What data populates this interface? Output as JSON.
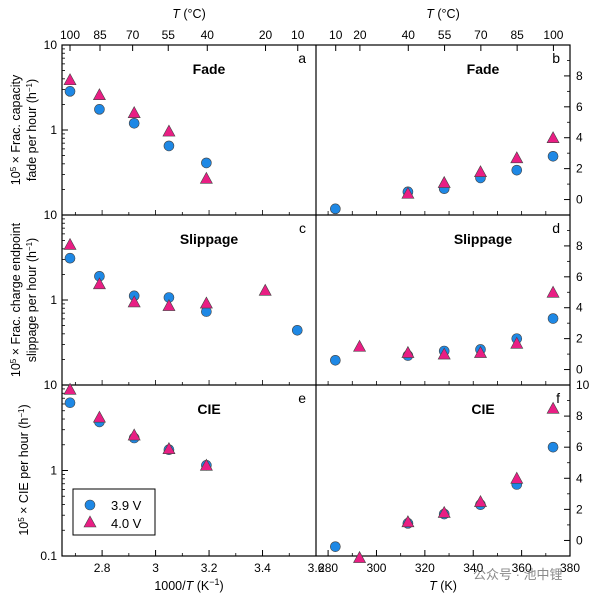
{
  "figure": {
    "watermark": "公众号 · 池中锂",
    "colors": {
      "blue": "#1e88e5",
      "pink": "#e91e84",
      "edge": "#444444"
    },
    "legend": {
      "entries": [
        "3.9 V",
        "4.0 V"
      ],
      "placement": "lower-left of panel e"
    }
  },
  "chart_data": [
    {
      "panel": "a",
      "title": "Fade",
      "type": "scatter",
      "xlabel_html": "1000/T (K⁻¹)",
      "ylabel": "10^5 × Frac. capacity fade per hour (h^-1)",
      "xlim": [
        2.65,
        3.6
      ],
      "ylim": [
        0.1,
        10
      ],
      "yscale": "log",
      "top_axis": {
        "label": "T (°C)",
        "ticks": [
          "100",
          "85",
          "70",
          "55",
          "40",
          "20",
          "10"
        ]
      },
      "series": [
        {
          "name": "3.9 V",
          "marker": "circle",
          "x": [
            2.68,
            2.79,
            2.92,
            3.05,
            3.19
          ],
          "y": [
            2.85,
            1.75,
            1.2,
            0.65,
            0.41
          ]
        },
        {
          "name": "4.0 V",
          "marker": "triangle",
          "x": [
            2.68,
            2.79,
            2.92,
            3.05,
            3.19
          ],
          "y": [
            3.9,
            2.6,
            1.6,
            0.97,
            0.27
          ]
        }
      ]
    },
    {
      "panel": "b",
      "title": "Fade",
      "type": "scatter",
      "xlim": [
        275,
        380
      ],
      "ylim": [
        -1,
        10
      ],
      "yscale": "linear",
      "top_axis": {
        "label": "T (°C)",
        "ticks": [
          "10",
          "20",
          "40",
          "55",
          "70",
          "85",
          "100"
        ]
      },
      "series": [
        {
          "name": "3.9 V",
          "marker": "circle",
          "x": [
            283,
            313,
            328,
            343,
            358,
            373
          ],
          "y": [
            -0.6,
            0.5,
            0.7,
            1.4,
            1.9,
            2.8
          ]
        },
        {
          "name": "4.0 V",
          "marker": "triangle",
          "x": [
            313,
            328,
            343,
            358,
            373
          ],
          "y": [
            0.4,
            1.1,
            1.8,
            2.7,
            4.0
          ]
        }
      ]
    },
    {
      "panel": "c",
      "title": "Slippage",
      "type": "scatter",
      "ylabel": "10^5 × Frac. charge endpoint slippage per hour (h^-1)",
      "xlim": [
        2.65,
        3.6
      ],
      "ylim": [
        0.1,
        10
      ],
      "yscale": "log",
      "series": [
        {
          "name": "3.9 V",
          "marker": "circle",
          "x": [
            2.68,
            2.79,
            2.92,
            3.05,
            3.19,
            3.53
          ],
          "y": [
            3.1,
            1.9,
            1.12,
            1.07,
            0.73,
            0.44
          ]
        },
        {
          "name": "4.0 V",
          "marker": "triangle",
          "x": [
            2.68,
            2.79,
            2.92,
            3.05,
            3.19,
            3.41
          ],
          "y": [
            4.5,
            1.55,
            0.95,
            0.86,
            0.92,
            1.3
          ]
        }
      ]
    },
    {
      "panel": "d",
      "title": "Slippage",
      "type": "scatter",
      "xlim": [
        275,
        380
      ],
      "ylim": [
        -1,
        10
      ],
      "yscale": "linear",
      "series": [
        {
          "name": "3.9 V",
          "marker": "circle",
          "x": [
            283,
            313,
            328,
            343,
            358,
            373
          ],
          "y": [
            0.6,
            0.9,
            1.2,
            1.3,
            2.0,
            3.3
          ]
        },
        {
          "name": "4.0 V",
          "marker": "triangle",
          "x": [
            293,
            313,
            328,
            343,
            358,
            373
          ],
          "y": [
            1.5,
            1.1,
            1.0,
            1.1,
            1.7,
            5.0
          ]
        }
      ]
    },
    {
      "panel": "e",
      "title": "CIE",
      "type": "scatter",
      "ylabel": "10^5 × CIE per hour (h^-1)",
      "xlabel": "1000/T (K^-1)",
      "xlim": [
        2.65,
        3.6
      ],
      "ylim": [
        0.1,
        10
      ],
      "yscale": "log",
      "x_ticks": [
        "2.8",
        "3",
        "3.2",
        "3.4",
        "3.6"
      ],
      "series": [
        {
          "name": "3.9 V",
          "marker": "circle",
          "x": [
            2.68,
            2.79,
            2.92,
            3.05,
            3.19
          ],
          "y": [
            6.2,
            3.7,
            2.4,
            1.75,
            1.15
          ]
        },
        {
          "name": "4.0 V",
          "marker": "triangle",
          "x": [
            2.68,
            2.79,
            2.92,
            3.05,
            3.19
          ],
          "y": [
            8.9,
            4.2,
            2.6,
            1.8,
            1.15
          ]
        }
      ]
    },
    {
      "panel": "f",
      "title": "CIE",
      "type": "scatter",
      "xlabel": "T (K)",
      "xlim": [
        275,
        380
      ],
      "ylim": [
        -1,
        10
      ],
      "yscale": "linear",
      "x_ticks": [
        "280",
        "300",
        "320",
        "340",
        "360",
        "380"
      ],
      "series": [
        {
          "name": "3.9 V",
          "marker": "circle",
          "x": [
            283,
            313,
            328,
            343,
            358,
            373
          ],
          "y": [
            -0.4,
            1.1,
            1.7,
            2.3,
            3.6,
            6.0
          ]
        },
        {
          "name": "4.0 V",
          "marker": "triangle",
          "x": [
            293,
            313,
            328,
            343,
            358,
            373
          ],
          "y": [
            -1.1,
            1.2,
            1.8,
            2.5,
            4.0,
            8.5
          ]
        }
      ]
    }
  ]
}
